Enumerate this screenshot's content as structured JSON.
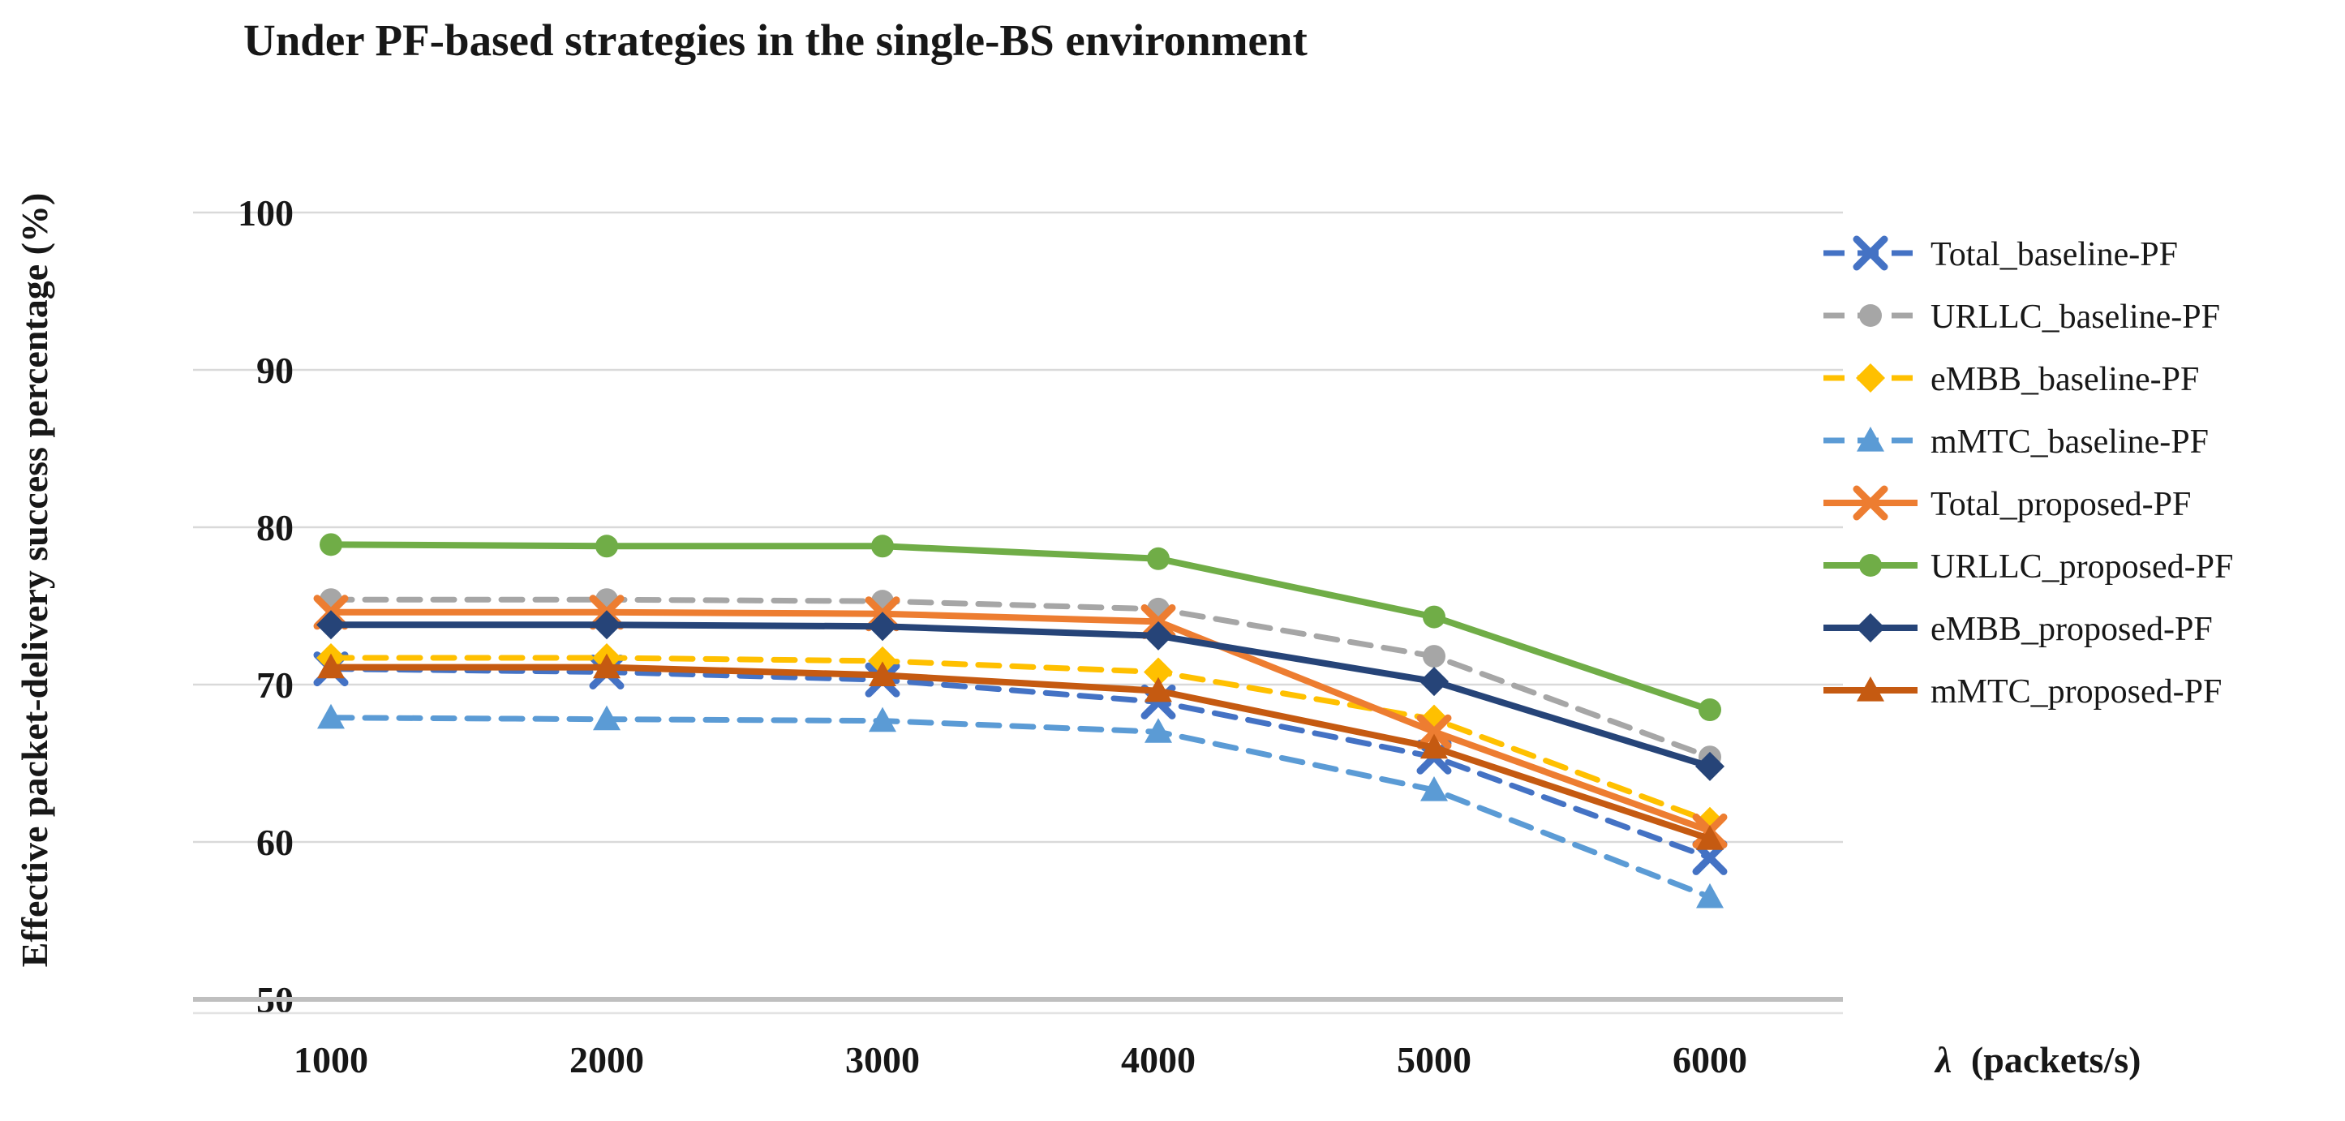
{
  "title": "Under PF-based strategies in the single-BS environment",
  "y_axis": {
    "title": "Effective packet-delivery success percentage (%)",
    "ticks": [
      100,
      90,
      80,
      70,
      60,
      50
    ]
  },
  "x_axis": {
    "symbol": "λ",
    "unit": "(packets/s)",
    "ticks": [
      "1000",
      "2000",
      "3000",
      "4000",
      "5000",
      "6000"
    ]
  },
  "chart_data": {
    "type": "line",
    "title": "Under PF-based strategies in the single-BS environment",
    "xlabel": "λ (packets/s)",
    "ylabel": "Effective packet-delivery success percentage (%)",
    "categories": [
      1000,
      2000,
      3000,
      4000,
      5000,
      6000
    ],
    "ylim": [
      50,
      100
    ],
    "grid": true,
    "legend_position": "right",
    "series": [
      {
        "name": "Total_baseline-PF",
        "color": "#4472C4",
        "style": "dashed",
        "marker": "x",
        "values": [
          71.0,
          70.8,
          70.3,
          68.9,
          65.4,
          59.0
        ]
      },
      {
        "name": "URLLC_baseline-PF",
        "color": "#A6A6A6",
        "style": "dashed",
        "marker": "circle",
        "values": [
          75.4,
          75.4,
          75.3,
          74.8,
          71.8,
          65.4
        ]
      },
      {
        "name": "eMBB_baseline-PF",
        "color": "#FFC000",
        "style": "dashed",
        "marker": "diamond",
        "values": [
          71.7,
          71.7,
          71.5,
          70.8,
          67.8,
          61.3
        ]
      },
      {
        "name": "mMTC_baseline-PF",
        "color": "#5B9BD5",
        "style": "dashed",
        "marker": "triangle",
        "values": [
          67.9,
          67.8,
          67.7,
          67.0,
          63.3,
          56.5
        ]
      },
      {
        "name": "Total_proposed-PF",
        "color": "#ED7D31",
        "style": "solid",
        "marker": "x",
        "values": [
          74.6,
          74.6,
          74.5,
          74.0,
          67.0,
          60.7
        ]
      },
      {
        "name": "URLLC_proposed-PF",
        "color": "#70AD47",
        "style": "solid",
        "marker": "circle",
        "values": [
          78.9,
          78.8,
          78.8,
          78.0,
          74.3,
          68.4
        ]
      },
      {
        "name": "eMBB_proposed-PF",
        "color": "#264478",
        "style": "solid",
        "marker": "diamond",
        "values": [
          73.8,
          73.8,
          73.7,
          73.1,
          70.2,
          64.8
        ]
      },
      {
        "name": "mMTC_proposed-PF",
        "color": "#C55A11",
        "style": "solid",
        "marker": "triangle",
        "values": [
          71.1,
          71.1,
          70.6,
          69.6,
          66.0,
          60.2
        ]
      }
    ]
  }
}
